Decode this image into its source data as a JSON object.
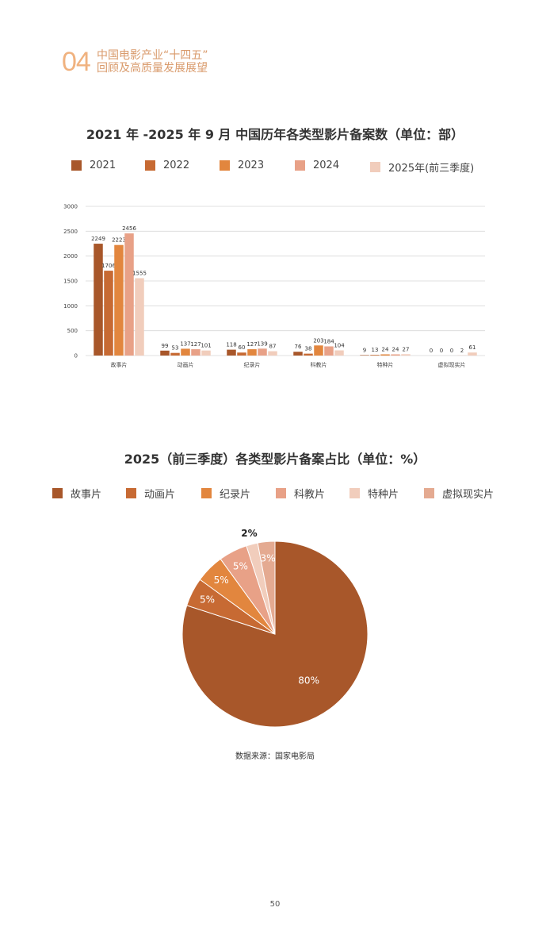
{
  "header": {
    "number": "04",
    "line1": "中国电影产业“十四五”",
    "line2": "回顾及高质量发展展望"
  },
  "colors": [
    "#a8572a",
    "#c76a33",
    "#e2863e",
    "#e8a187",
    "#f1cdbc",
    "#e4aa91"
  ],
  "chart_data": [
    {
      "type": "bar",
      "title": "2021 年 -2025 年 9 月  中国历年各类型影片备案数（单位：部）",
      "categories": [
        "故事片",
        "动画片",
        "纪录片",
        "科教片",
        "特种片",
        "虚拟现实片"
      ],
      "series": [
        {
          "name": "2021",
          "values": [
            2249,
            99,
            118,
            76,
            9,
            0
          ]
        },
        {
          "name": "2022",
          "values": [
            1706,
            53,
            60,
            38,
            13,
            0
          ]
        },
        {
          "name": "2023",
          "values": [
            2223,
            137,
            127,
            203,
            24,
            0
          ]
        },
        {
          "name": "2024",
          "values": [
            2456,
            127,
            139,
            184,
            24,
            2
          ]
        },
        {
          "name": "2025年(前三季度)",
          "values": [
            1555,
            101,
            87,
            104,
            27,
            61
          ]
        }
      ],
      "yticks": [
        "0",
        "500",
        "1000",
        "1500",
        "2000",
        "2500",
        "3000"
      ],
      "ylim": [
        0,
        3000
      ],
      "grid": true,
      "legend": "top"
    },
    {
      "type": "pie",
      "title": "2025（前三季度）各类型影片备案占比（单位：%）",
      "categories": [
        "故事片",
        "动画片",
        "纪录片",
        "科教片",
        "特种片",
        "虚拟现实片"
      ],
      "values": [
        80,
        5,
        5,
        5,
        2,
        3
      ],
      "labels": [
        "80%",
        "5%",
        "5%",
        "5%",
        "2%",
        "3%"
      ],
      "legend": "top"
    }
  ],
  "source": "数据来源：国家电影局",
  "page_number": "50"
}
